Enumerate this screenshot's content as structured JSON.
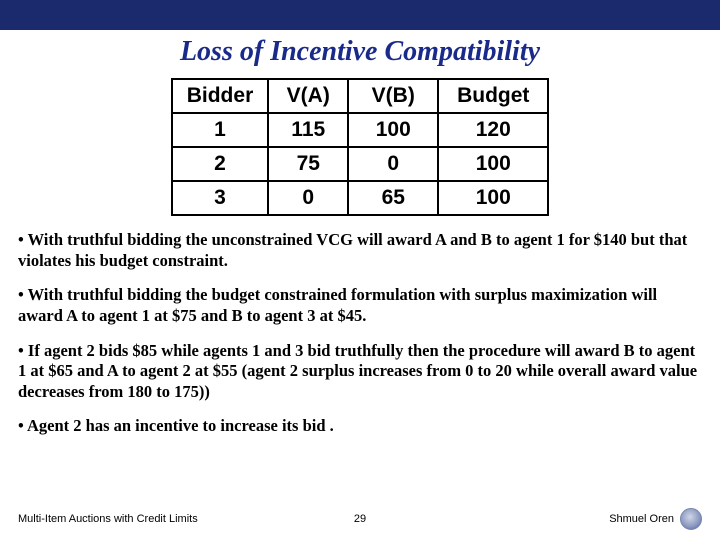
{
  "colors": {
    "header_bar": "#1a2a6c",
    "title_color": "#1a2a8a",
    "border": "#000000",
    "background": "#ffffff"
  },
  "title": "Loss of Incentive Compatibility",
  "table": {
    "columns": [
      "Bidder",
      "V(A)",
      "V(B)",
      "Budget"
    ],
    "rows": [
      [
        "1",
        "115",
        "100",
        "120"
      ],
      [
        "2",
        "75",
        "0",
        "100"
      ],
      [
        "3",
        "0",
        "65",
        "100"
      ]
    ]
  },
  "bullets": [
    "• With truthful bidding the unconstrained VCG  will award A and B to agent 1 for $140 but that violates his budget constraint.",
    "• With truthful bidding the budget constrained formulation with surplus maximization will award A to agent 1 at $75 and B to agent 3 at $45.",
    "• If agent 2 bids $85 while agents 1 and 3 bid truthfully then the procedure will award B to agent 1 at $65 and A to agent 2 at  $55 (agent 2 surplus increases from 0 to 20 while overall award value decreases from 180 to 175))",
    "• Agent 2 has an incentive to increase its bid ."
  ],
  "footer": {
    "left": "Multi-Item Auctions with Credit Limits",
    "page": "29",
    "right": "Shmuel Oren"
  }
}
